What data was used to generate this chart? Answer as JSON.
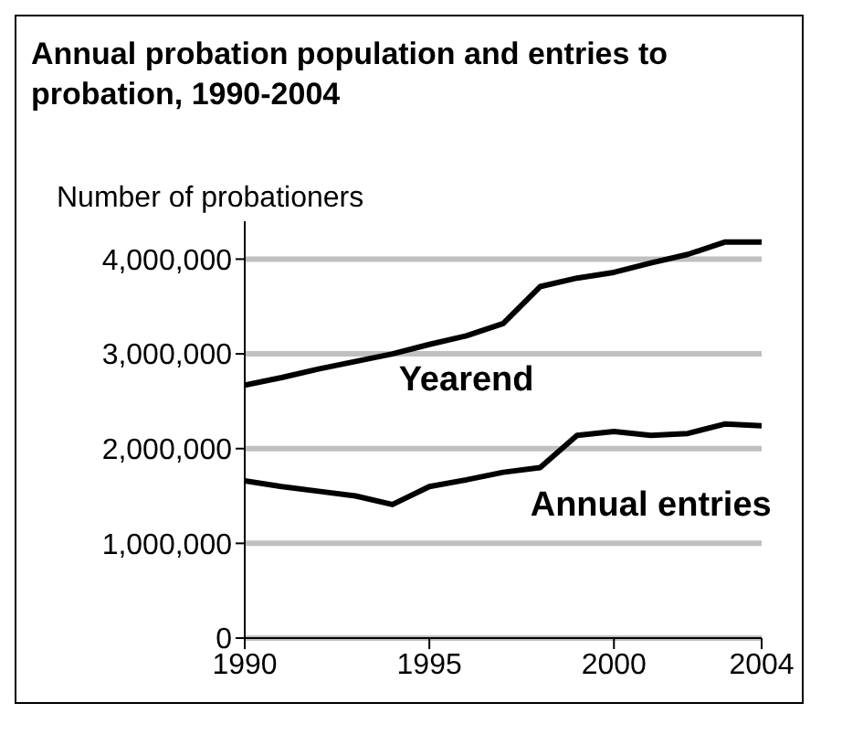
{
  "chart_data": {
    "type": "line",
    "title": "Annual probation population and entries to probation, 1990-2004",
    "ylabel": "Number of probationers",
    "x": [
      1990,
      1991,
      1992,
      1993,
      1994,
      1995,
      1996,
      1997,
      1998,
      1999,
      2000,
      2001,
      2002,
      2003,
      2004
    ],
    "series": [
      {
        "name": "Yearend",
        "color": "#000000",
        "values": [
          2670000,
          2750000,
          2840000,
          2920000,
          3000000,
          3100000,
          3190000,
          3320000,
          3710000,
          3800000,
          3860000,
          3960000,
          4050000,
          4180000,
          4180000
        ]
      },
      {
        "name": "Annual entries",
        "color": "#000000",
        "values": [
          1660000,
          1600000,
          1550000,
          1500000,
          1410000,
          1600000,
          1670000,
          1750000,
          1800000,
          2140000,
          2180000,
          2140000,
          2160000,
          2260000,
          2240000
        ]
      }
    ],
    "xlim": [
      1990,
      2004
    ],
    "xticks": [
      1990,
      1995,
      2000,
      2004
    ],
    "ylim": [
      0,
      4400000
    ],
    "yticks": [
      0,
      {
        "value": 1000000,
        "label": "1,000,000"
      },
      {
        "value": 2000000,
        "label": "2,000,000"
      },
      {
        "value": 3000000,
        "label": "3,000,000"
      },
      {
        "value": 4000000,
        "label": "4,000,000"
      }
    ],
    "grid": "y",
    "marker": "none",
    "line_style": "solid"
  }
}
